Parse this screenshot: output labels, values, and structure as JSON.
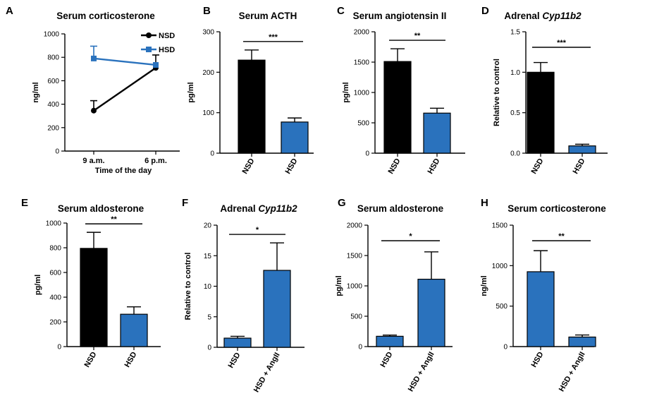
{
  "colors": {
    "black": "#000000",
    "blue": "#2a72bd"
  },
  "chart_data": [
    {
      "panel": "A",
      "type": "line",
      "title": "Serum corticosterone",
      "xlabel": "Time of the day",
      "ylabel": "ng/ml",
      "categories": [
        "9 a.m.",
        "6 p.m."
      ],
      "ylim": [
        0,
        1000
      ],
      "yticks": [
        "0",
        "200",
        "400",
        "600",
        "800",
        "1000"
      ],
      "series": [
        {
          "name": "NSD",
          "color": "#000000",
          "marker": "circle",
          "values": [
            345,
            710
          ],
          "errors": [
            85,
            110
          ]
        },
        {
          "name": "HSD",
          "color": "#2a72bd",
          "marker": "square",
          "values": [
            790,
            735
          ],
          "errors": [
            105,
            0
          ]
        }
      ],
      "legend": "top-right"
    },
    {
      "panel": "B",
      "type": "bar",
      "title": "Serum ACTH",
      "ylabel": "pg/ml",
      "categories": [
        "NSD",
        "HSD"
      ],
      "values": [
        230,
        77
      ],
      "errors": [
        25,
        10
      ],
      "colors": [
        "#000000",
        "#2a72bd"
      ],
      "ylim": [
        0,
        300
      ],
      "yticks": [
        "0",
        "100",
        "200",
        "300"
      ],
      "significance": "***"
    },
    {
      "panel": "C",
      "type": "bar",
      "title": "Serum angiotensin II",
      "ylabel": "pg/ml",
      "categories": [
        "NSD",
        "HSD"
      ],
      "values": [
        1510,
        660
      ],
      "errors": [
        210,
        80
      ],
      "colors": [
        "#000000",
        "#2a72bd"
      ],
      "ylim": [
        0,
        2000
      ],
      "yticks": [
        "0",
        "500",
        "1000",
        "1500",
        "2000"
      ],
      "significance": "**"
    },
    {
      "panel": "D",
      "type": "bar",
      "title_plain": "Adrenal ",
      "title_italic": "Cyp11b2",
      "ylabel": "Relative to control",
      "categories": [
        "NSD",
        "HSD"
      ],
      "values": [
        1.0,
        0.09
      ],
      "errors": [
        0.12,
        0.02
      ],
      "colors": [
        "#000000",
        "#2a72bd"
      ],
      "ylim": [
        0,
        1.5
      ],
      "yticks": [
        "0.0",
        "0.5",
        "1.0",
        "1.5"
      ],
      "significance": "***"
    },
    {
      "panel": "E",
      "type": "bar",
      "title": "Serum aldosterone",
      "ylabel": "pg/ml",
      "categories": [
        "NSD",
        "HSD"
      ],
      "values": [
        795,
        262
      ],
      "errors": [
        130,
        60
      ],
      "colors": [
        "#000000",
        "#2a72bd"
      ],
      "ylim": [
        0,
        1000
      ],
      "yticks": [
        "0",
        "200",
        "400",
        "600",
        "800",
        "1000"
      ],
      "significance": "**"
    },
    {
      "panel": "F",
      "type": "bar",
      "title_plain": "Adrenal ",
      "title_italic": "Cyp11b2",
      "ylabel": "Relative to control",
      "categories": [
        "HSD",
        "HSD + AngII"
      ],
      "values": [
        1.5,
        12.6
      ],
      "errors": [
        0.3,
        4.5
      ],
      "colors": [
        "#2a72bd",
        "#2a72bd"
      ],
      "ylim": [
        0,
        20
      ],
      "yticks": [
        "0",
        "5",
        "10",
        "15",
        "20"
      ],
      "significance": "*"
    },
    {
      "panel": "G",
      "type": "bar",
      "title": "Serum aldosterone",
      "ylabel": "pg/ml",
      "categories": [
        "HSD",
        "HSD + AngII"
      ],
      "values": [
        170,
        1110
      ],
      "errors": [
        20,
        450
      ],
      "colors": [
        "#2a72bd",
        "#2a72bd"
      ],
      "ylim": [
        0,
        2000
      ],
      "yticks": [
        "0",
        "500",
        "1000",
        "1500",
        "2000"
      ],
      "significance": "*"
    },
    {
      "panel": "H",
      "type": "bar",
      "title": "Serum corticosterone",
      "ylabel": "ng/ml",
      "categories": [
        "HSD",
        "HSD + AngII"
      ],
      "values": [
        925,
        118
      ],
      "errors": [
        260,
        25
      ],
      "colors": [
        "#2a72bd",
        "#2a72bd"
      ],
      "ylim": [
        0,
        1500
      ],
      "yticks": [
        "0",
        "500",
        "1000",
        "1500"
      ],
      "significance": "**"
    }
  ]
}
